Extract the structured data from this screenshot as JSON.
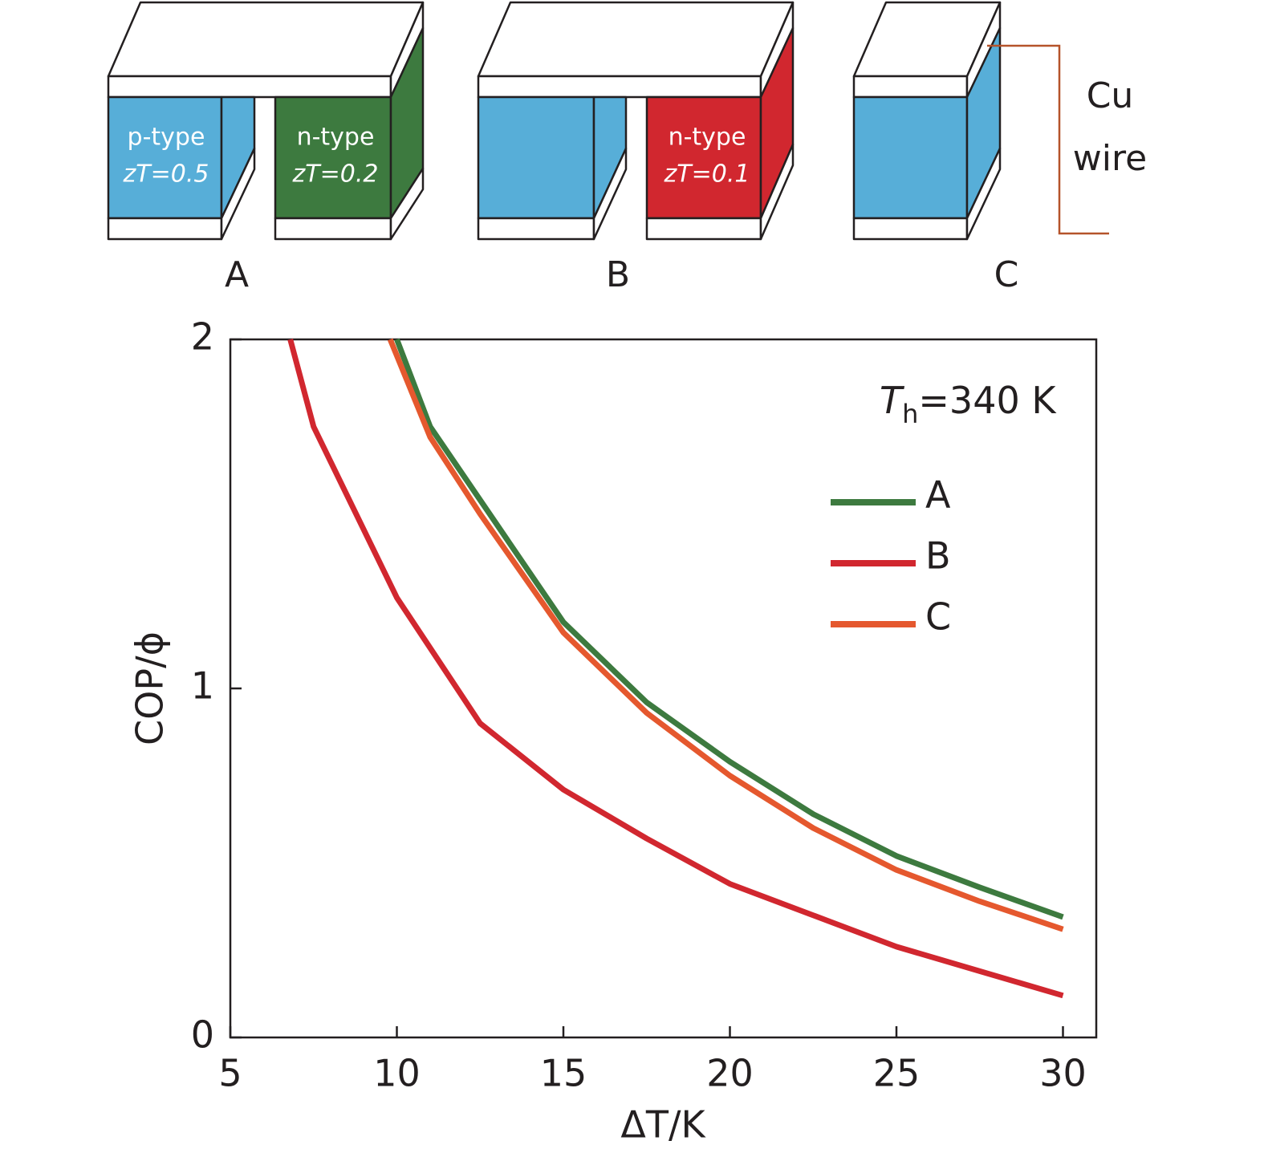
{
  "diagram": {
    "module_a": {
      "label": "A",
      "left_type": "p-type",
      "left_zt": "zT=0.5",
      "right_type": "n-type",
      "right_zt": "zT=0.2"
    },
    "module_b": {
      "label": "B",
      "right_type": "n-type",
      "right_zt": "zT=0.1"
    },
    "module_c": {
      "label": "C"
    },
    "wire_label": [
      "Cu",
      "wire"
    ]
  },
  "chart_data": {
    "type": "line",
    "xlabel": "ΔT/K",
    "ylabel": "COP/ϕ",
    "annotation": [
      "T",
      "h",
      "=340 K"
    ],
    "xlim": [
      5,
      31
    ],
    "ylim": [
      0,
      2
    ],
    "xticks": [
      5,
      10,
      15,
      20,
      25,
      30
    ],
    "yticks": [
      0,
      1,
      2
    ],
    "legend": "upper right",
    "series": [
      {
        "name": "A",
        "color": "#3d7a3f",
        "x": [
          10,
          11,
          12.5,
          15,
          17.5,
          20,
          22.5,
          25,
          27.5,
          30
        ],
        "values": [
          2,
          1.75,
          1.54,
          1.19,
          0.96,
          0.79,
          0.64,
          0.52,
          0.43,
          0.345
        ]
      },
      {
        "name": "B",
        "color": "#d1272f",
        "x": [
          6.8,
          7.5,
          10,
          12.5,
          15,
          17.5,
          20,
          22.5,
          25,
          27.5,
          30
        ],
        "values": [
          2,
          1.75,
          1.26,
          0.9,
          0.71,
          0.57,
          0.44,
          0.35,
          0.26,
          0.19,
          0.12
        ]
      },
      {
        "name": "C",
        "color": "#e5582e",
        "x": [
          9.8,
          11,
          12.5,
          15,
          17.5,
          20,
          22.5,
          25,
          27.5,
          30
        ],
        "values": [
          2,
          1.72,
          1.5,
          1.16,
          0.93,
          0.75,
          0.6,
          0.48,
          0.39,
          0.31
        ]
      }
    ]
  }
}
